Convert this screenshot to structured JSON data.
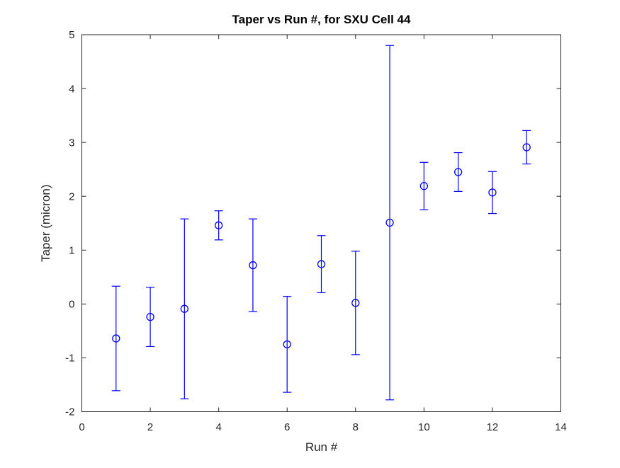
{
  "chart_data": {
    "type": "scatter",
    "title": "Taper vs Run #, for SXU Cell 44",
    "xlabel": "Run #",
    "ylabel": "Taper (micron)",
    "x": [
      1,
      2,
      3,
      4,
      5,
      6,
      7,
      8,
      9,
      10,
      11,
      12,
      13
    ],
    "y": [
      -0.64,
      -0.24,
      -0.09,
      1.46,
      0.72,
      -0.75,
      0.74,
      0.02,
      1.51,
      2.19,
      2.45,
      2.07,
      2.91
    ],
    "yerr": [
      0.97,
      0.55,
      1.67,
      0.27,
      0.86,
      0.89,
      0.53,
      0.96,
      3.29,
      0.44,
      0.36,
      0.39,
      0.31
    ],
    "xlim": [
      0,
      14
    ],
    "ylim": [
      -2,
      5
    ],
    "xticks": [
      0,
      2,
      4,
      6,
      8,
      10,
      12,
      14
    ],
    "yticks": [
      -2,
      -1,
      0,
      1,
      2,
      3,
      4,
      5
    ],
    "marker": "open-circle",
    "errorbars": "vertical",
    "grid": false,
    "box": true,
    "series_color": "#0000FF",
    "axis_color": "#262626",
    "background_color": "#FFFFFF"
  }
}
